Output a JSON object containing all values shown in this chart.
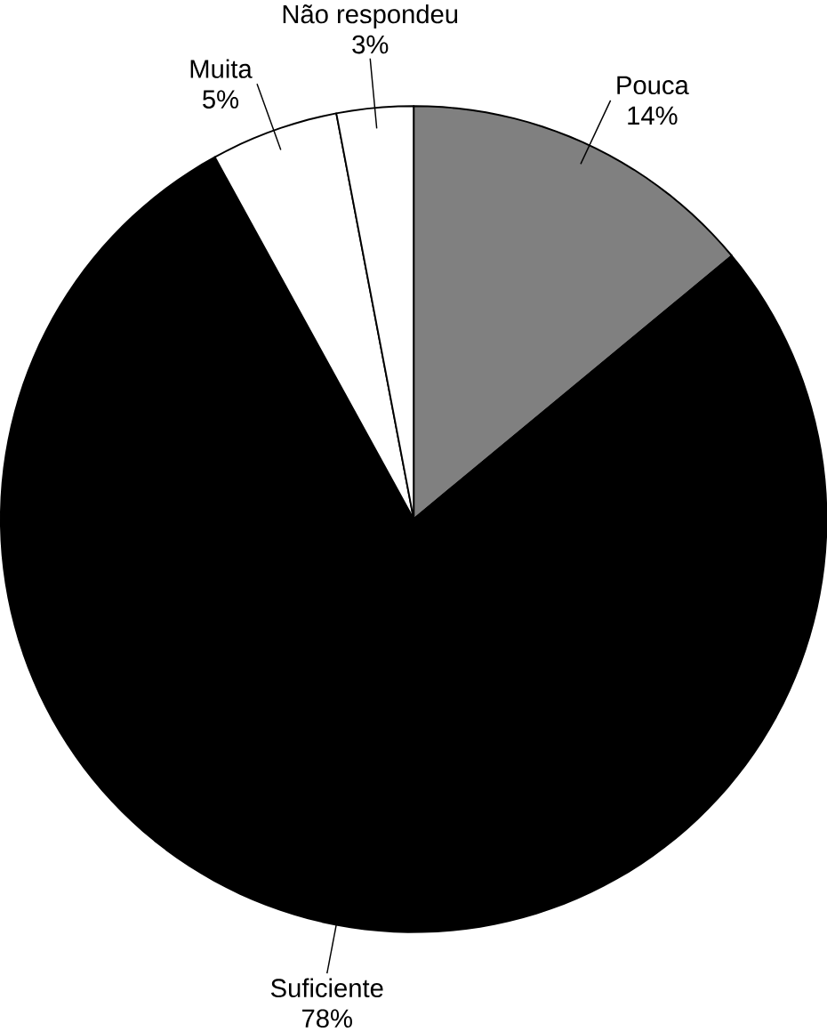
{
  "chart_data": {
    "type": "pie",
    "categories": [
      "Pouca",
      "Suficiente",
      "Muita",
      "Não respondeu"
    ],
    "values": [
      14,
      78,
      5,
      3
    ],
    "value_labels": [
      "14%",
      "78%",
      "5%",
      "3%"
    ],
    "colors": [
      "#808080",
      "#000000",
      "#ffffff",
      "#ffffff"
    ]
  }
}
